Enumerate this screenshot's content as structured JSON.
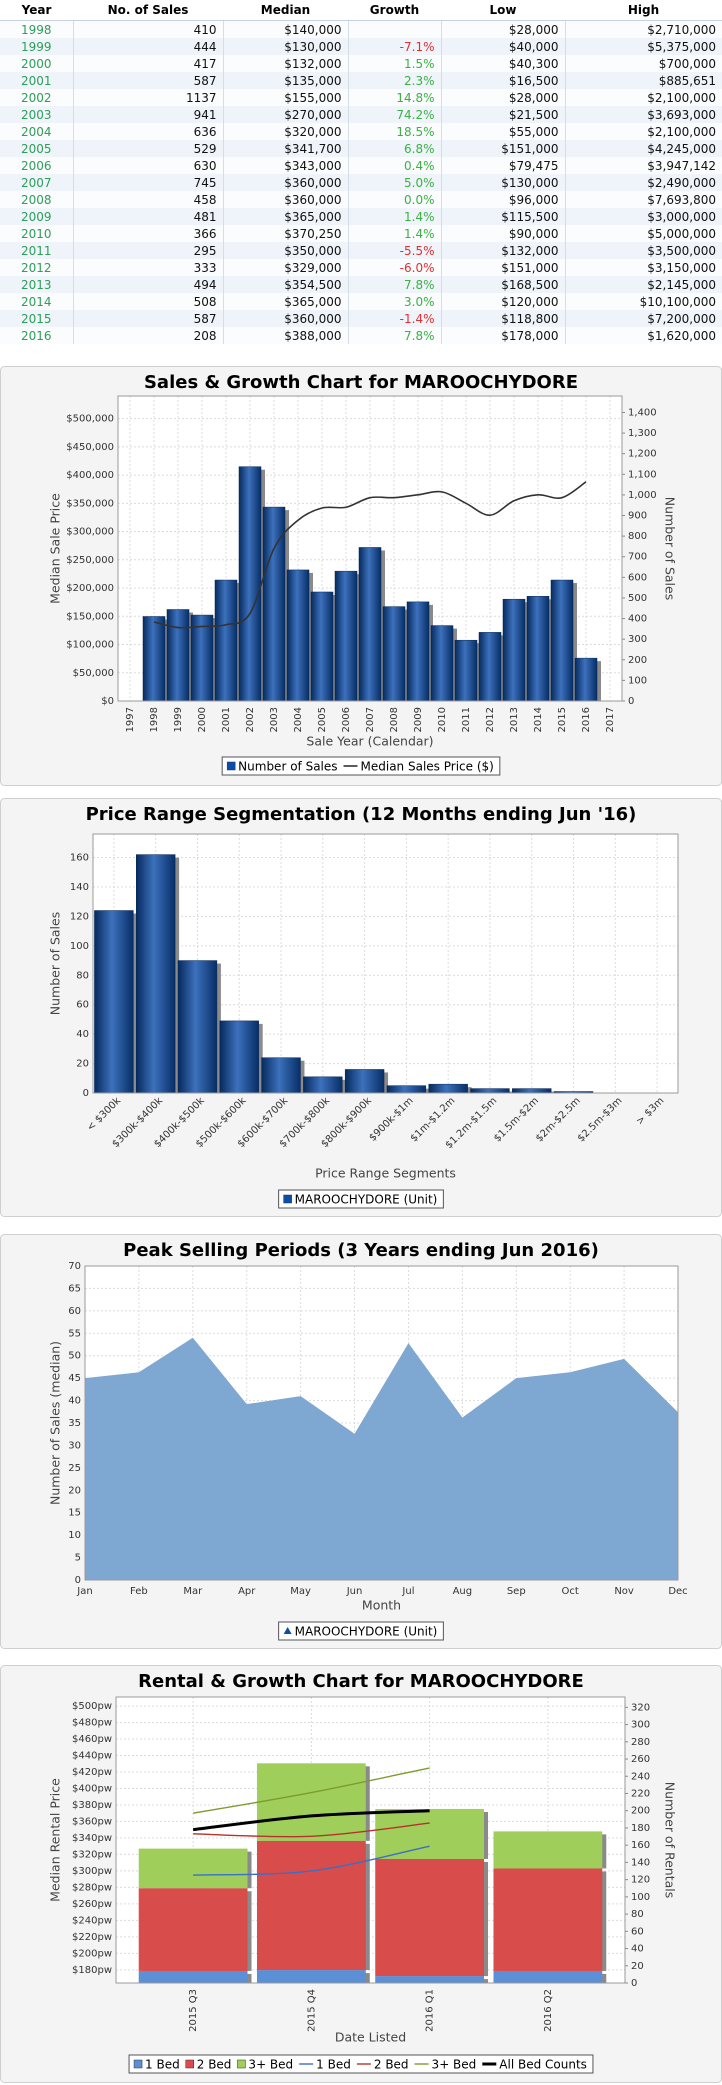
{
  "table": {
    "columns": [
      "Year",
      "No. of Sales",
      "Median",
      "Growth",
      "Low",
      "High"
    ],
    "rows": [
      [
        "1998",
        "410",
        "$140,000",
        null,
        "$28,000",
        "$2,710,000"
      ],
      [
        "1999",
        "444",
        "$130,000",
        "-7.1%",
        "$40,000",
        "$5,375,000"
      ],
      [
        "2000",
        "417",
        "$132,000",
        "1.5%",
        "$40,300",
        "$700,000"
      ],
      [
        "2001",
        "587",
        "$135,000",
        "2.3%",
        "$16,500",
        "$885,651"
      ],
      [
        "2002",
        "1137",
        "$155,000",
        "14.8%",
        "$28,000",
        "$2,100,000"
      ],
      [
        "2003",
        "941",
        "$270,000",
        "74.2%",
        "$21,500",
        "$3,693,000"
      ],
      [
        "2004",
        "636",
        "$320,000",
        "18.5%",
        "$55,000",
        "$2,100,000"
      ],
      [
        "2005",
        "529",
        "$341,700",
        "6.8%",
        "$151,000",
        "$4,245,000"
      ],
      [
        "2006",
        "630",
        "$343,000",
        "0.4%",
        "$79,475",
        "$3,947,142"
      ],
      [
        "2007",
        "745",
        "$360,000",
        "5.0%",
        "$130,000",
        "$2,490,000"
      ],
      [
        "2008",
        "458",
        "$360,000",
        "0.0%",
        "$96,000",
        "$7,693,800"
      ],
      [
        "2009",
        "481",
        "$365,000",
        "1.4%",
        "$115,500",
        "$3,000,000"
      ],
      [
        "2010",
        "366",
        "$370,250",
        "1.4%",
        "$90,000",
        "$5,000,000"
      ],
      [
        "2011",
        "295",
        "$350,000",
        "-5.5%",
        "$132,000",
        "$3,500,000"
      ],
      [
        "2012",
        "333",
        "$329,000",
        "-6.0%",
        "$151,000",
        "$3,150,000"
      ],
      [
        "2013",
        "494",
        "$354,500",
        "7.8%",
        "$168,500",
        "$2,145,000"
      ],
      [
        "2014",
        "508",
        "$365,000",
        "3.0%",
        "$120,000",
        "$10,100,000"
      ],
      [
        "2015",
        "587",
        "$360,000",
        "-1.4%",
        "$118,800",
        "$7,200,000"
      ],
      [
        "2016",
        "208",
        "$388,000",
        "7.8%",
        "$178,000",
        "$1,620,000"
      ]
    ]
  },
  "chart_data": [
    {
      "type": "bar",
      "title": "Sales & Growth Chart for MAROOCHYDORE",
      "xlabel": "Sale Year (Calendar)",
      "ylabel": "Median Sale Price",
      "y2label": "Number of Sales",
      "grid": true,
      "x": [
        1998,
        1999,
        2000,
        2001,
        2002,
        2003,
        2004,
        2005,
        2006,
        2007,
        2008,
        2009,
        2010,
        2011,
        2012,
        2013,
        2014,
        2015,
        2016
      ],
      "xlim": [
        1996.5,
        2017.5
      ],
      "xticks": [
        1997,
        1998,
        1999,
        2000,
        2001,
        2002,
        2003,
        2004,
        2005,
        2006,
        2007,
        2008,
        2009,
        2010,
        2011,
        2012,
        2013,
        2014,
        2015,
        2016,
        2017
      ],
      "ylim": [
        0,
        540000
      ],
      "yticks": [
        {
          "value": 0,
          "label": "$0"
        },
        {
          "value": 50000,
          "label": "$50,000"
        },
        {
          "value": 100000,
          "label": "$100,000"
        },
        {
          "value": 150000,
          "label": "$150,000"
        },
        {
          "value": 200000,
          "label": "$200,000"
        },
        {
          "value": 250000,
          "label": "$250,000"
        },
        {
          "value": 300000,
          "label": "$300,000"
        },
        {
          "value": 350000,
          "label": "$350,000"
        },
        {
          "value": 400000,
          "label": "$400,000"
        },
        {
          "value": 450000,
          "label": "$450,000"
        },
        {
          "value": 500000,
          "label": "$500,000"
        }
      ],
      "y2lim": [
        0,
        1480
      ],
      "y2ticks": [
        0,
        100,
        200,
        300,
        400,
        500,
        600,
        700,
        800,
        900,
        {
          "value": 1000,
          "label": "1,000"
        },
        {
          "value": 1100,
          "label": "1,100"
        },
        {
          "value": 1200,
          "label": "1,200"
        },
        {
          "value": 1300,
          "label": "1,300"
        },
        {
          "value": 1400,
          "label": "1,400"
        }
      ],
      "series": [
        {
          "name": "Number of Sales",
          "color": "#0b4dab",
          "axis": "y2",
          "values": [
            410,
            444,
            417,
            587,
            1137,
            941,
            636,
            529,
            630,
            745,
            458,
            481,
            366,
            295,
            333,
            494,
            508,
            587,
            208
          ]
        },
        {
          "name": "Median Sales Price ($)",
          "type": "line",
          "color": "#333333",
          "line_width": 1.6,
          "values": [
            140000,
            130000,
            132000,
            135000,
            155000,
            270000,
            320000,
            341700,
            343000,
            360000,
            360000,
            365000,
            370250,
            350000,
            329000,
            354500,
            365000,
            360000,
            388000
          ]
        }
      ]
    },
    {
      "type": "bar",
      "title": "Price Range Segmentation (12 Months ending Jun '16)",
      "xlabel": "Price Range Segments",
      "ylabel": "Number of Sales",
      "grid": true,
      "categories": [
        "< $300k",
        "$300k-$400k",
        "$400k-$500k",
        "$500k-$600k",
        "$600k-$700k",
        "$700k-$800k",
        "$800k-$900k",
        "$900k-$1m",
        "$1m-$1.2m",
        "$1.2m-$1.5m",
        "$1.5m-$2m",
        "$2m-$2.5m",
        "$2.5m-$3m",
        "> $3m"
      ],
      "ylim": [
        0,
        176
      ],
      "yticks": [
        0,
        20,
        40,
        60,
        80,
        100,
        120,
        140,
        160
      ],
      "series": [
        {
          "name": "MAROOCHYDORE (Unit)",
          "color": "#0b4dab",
          "values": [
            124,
            162,
            90,
            49,
            24,
            11,
            16,
            5,
            6,
            3,
            3,
            1,
            0,
            0
          ]
        }
      ]
    },
    {
      "type": "area",
      "title": "Peak Selling Periods (3 Years ending Jun 2016)",
      "xlabel": "Month",
      "ylabel": "Number of Sales (median)",
      "grid": true,
      "categories": [
        "Jan",
        "Feb",
        "Mar",
        "Apr",
        "May",
        "Jun",
        "Jul",
        "Aug",
        "Sep",
        "Oct",
        "Nov",
        "Dec"
      ],
      "ylim": [
        0,
        70
      ],
      "yticks": [
        0,
        5,
        10,
        15,
        20,
        25,
        30,
        35,
        40,
        45,
        50,
        55,
        60,
        65,
        70
      ],
      "series": [
        {
          "name": "MAROOCHYDORE (Unit)",
          "color": "#7ea7d1",
          "values": [
            45,
            46.3,
            54,
            39.2,
            41,
            32.6,
            52.8,
            36.2,
            45,
            46.3,
            49.3,
            37.4
          ]
        }
      ]
    },
    {
      "type": "bar",
      "stacked": true,
      "title": "Rental & Growth Chart for MAROOCHYDORE",
      "xlabel": "Date Listed",
      "ylabel": "Median Rental Price",
      "y2label": "Number of Rentals",
      "grid": true,
      "categories": [
        "2015 Q3",
        "2015 Q4",
        "2016 Q1",
        "2016 Q2"
      ],
      "ylim": [
        164,
        511
      ],
      "yticks": [
        {
          "value": 180,
          "label": "$180pw"
        },
        {
          "value": 200,
          "label": "$200pw"
        },
        {
          "value": 220,
          "label": "$220pw"
        },
        {
          "value": 240,
          "label": "$240pw"
        },
        {
          "value": 260,
          "label": "$260pw"
        },
        {
          "value": 280,
          "label": "$280pw"
        },
        {
          "value": 300,
          "label": "$300pw"
        },
        {
          "value": 320,
          "label": "$320pw"
        },
        {
          "value": 340,
          "label": "$340pw"
        },
        {
          "value": 360,
          "label": "$360pw"
        },
        {
          "value": 380,
          "label": "$380pw"
        },
        {
          "value": 400,
          "label": "$400pw"
        },
        {
          "value": 420,
          "label": "$420pw"
        },
        {
          "value": 440,
          "label": "$440pw"
        },
        {
          "value": 460,
          "label": "$460pw"
        },
        {
          "value": 480,
          "label": "$480pw"
        },
        {
          "value": 500,
          "label": "$500pw"
        }
      ],
      "y2lim": [
        0,
        332
      ],
      "y2ticks": [
        0,
        20,
        40,
        60,
        80,
        100,
        120,
        140,
        160,
        180,
        200,
        220,
        240,
        260,
        280,
        300,
        320
      ],
      "series": [
        {
          "name": "1 Bed",
          "color": "#5b8fd6",
          "axis": "y2",
          "values": [
            14,
            15,
            8,
            14
          ]
        },
        {
          "name": "2 Bed",
          "color": "#d94c4c",
          "axis": "y2",
          "values": [
            96,
            150,
            136,
            119
          ]
        },
        {
          "name": "3+ Bed",
          "color": "#9fcf5a",
          "axis": "y2",
          "values": [
            46,
            90,
            58,
            43
          ]
        },
        {
          "name": "1 Bed",
          "type": "line",
          "color": "#3a6fc4",
          "line_width": 1.4,
          "values": [
            295,
            300,
            330,
            null
          ]
        },
        {
          "name": "2 Bed",
          "type": "line",
          "color": "#b5322d",
          "line_width": 1.4,
          "values": [
            345,
            342,
            358,
            null
          ]
        },
        {
          "name": "3+ Bed",
          "type": "line",
          "color": "#7f9a2e",
          "line_width": 1.4,
          "values": [
            370,
            395,
            425,
            null
          ]
        },
        {
          "name": "All Bed Counts",
          "type": "line",
          "color": "#000000",
          "axis": "y2",
          "line_width": 3,
          "values": [
            178,
            194,
            200,
            null
          ]
        }
      ]
    }
  ]
}
